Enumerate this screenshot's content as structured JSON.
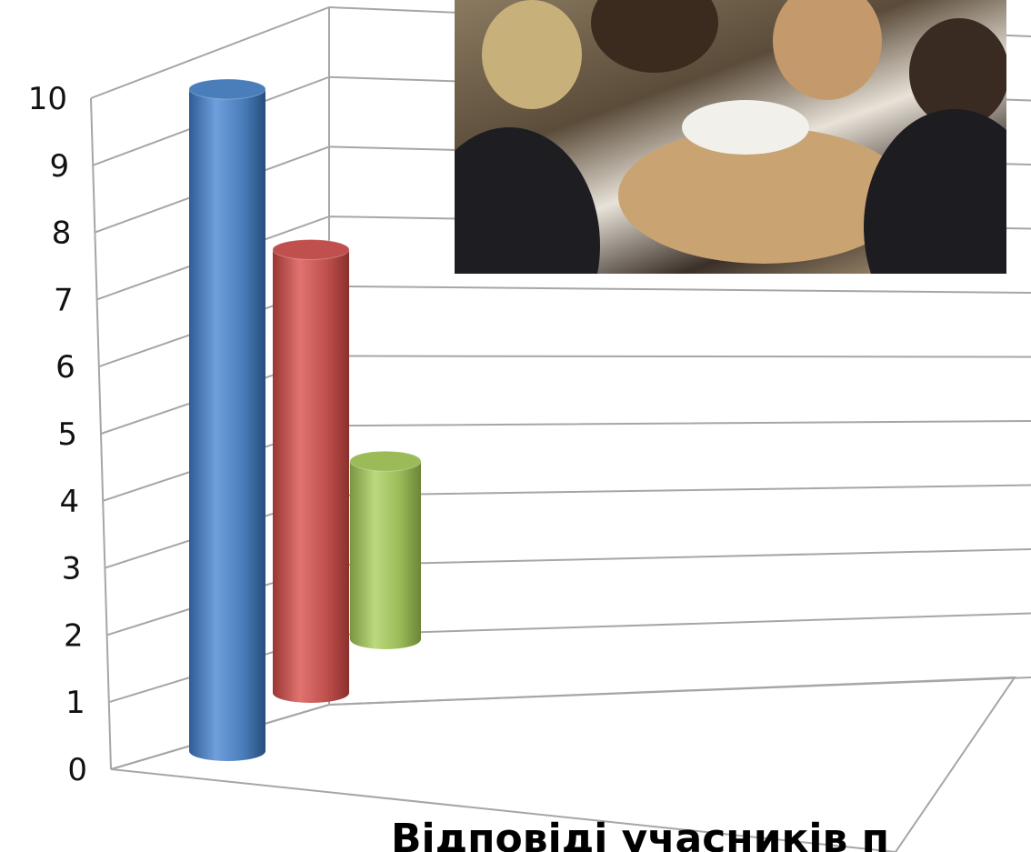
{
  "chart_data": {
    "type": "bar",
    "style": "3d-cylinder",
    "ylim": [
      0,
      10
    ],
    "yticks": [
      "0",
      "1",
      "2",
      "3",
      "4",
      "5",
      "6",
      "7",
      "8",
      "9",
      "10"
    ],
    "grid": true,
    "series": [
      {
        "values": [
          10
        ],
        "color": "#4a7ebb"
      },
      {
        "values": [
          7.5
        ],
        "color": "#c0504d"
      },
      {
        "values": [
          4.4
        ],
        "color": "#9bbb59"
      }
    ],
    "category_label_partial": "Відповіді учасників п"
  },
  "photo": {
    "icon": "classroom-photo-icon"
  }
}
